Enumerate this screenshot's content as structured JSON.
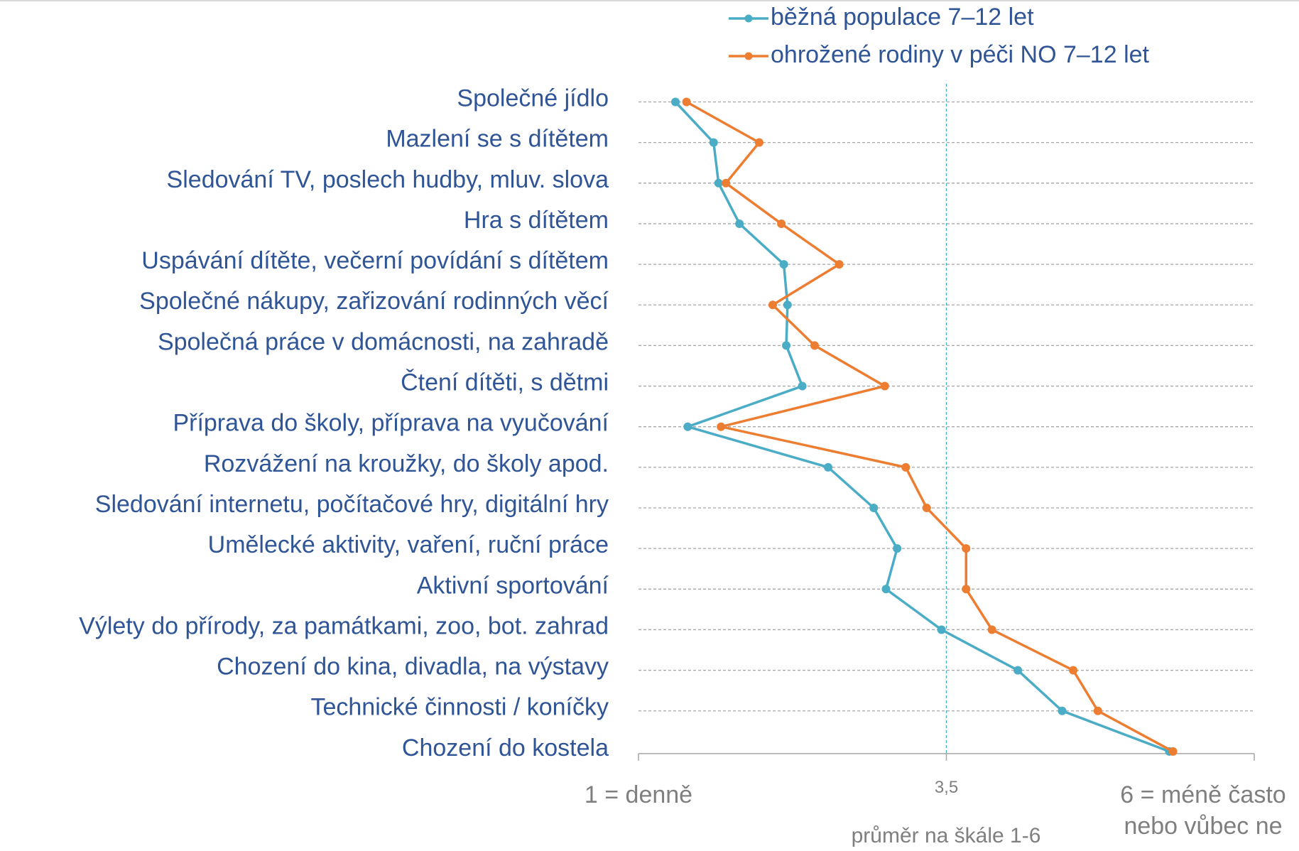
{
  "chart_data": {
    "type": "line",
    "categories": [
      "Společné jídlo",
      "Mazlení se s dítětem",
      "Sledování TV, poslech hudby, mluv. slova",
      "Hra s dítětem",
      "Uspávání dítěte, večerní povídání s dítětem",
      "Společné nákupy, zařizování rodinných věcí",
      "Společná práce v domácnosti, na zahradě",
      "Čtení dítěti, s dětmi",
      "Příprava do školy, příprava na vyučování",
      "Rozvážení na kroužky, do školy apod.",
      "Sledování internetu, počítačové hry, digitální hry",
      "Umělecké aktivity, vaření, ruční práce",
      "Aktivní sportování",
      "Výlety do přírody, za památkami, zoo, bot. zahrad",
      "Chození do kina, divadla, na výstavy",
      "Technické činnosti / koníčky",
      "Chození do kostela"
    ],
    "series": [
      {
        "name": "běžná populace 7–12 let",
        "color": "#4bacc6",
        "values": [
          1.3,
          1.61,
          1.65,
          1.82,
          2.18,
          2.21,
          2.2,
          2.33,
          1.4,
          2.54,
          2.91,
          3.1,
          3.01,
          3.46,
          4.08,
          4.44,
          5.31
        ]
      },
      {
        "name": "ohrožené rodiny v péči NO 7–12 let",
        "color": "#ed7d31",
        "values": [
          1.39,
          1.98,
          1.71,
          2.16,
          2.63,
          2.09,
          2.43,
          3.0,
          1.67,
          3.17,
          3.34,
          3.66,
          3.66,
          3.87,
          4.53,
          4.73,
          5.34
        ]
      }
    ],
    "xlabel": "průměr na škále 1-6",
    "xlim": [
      1,
      6
    ],
    "xticks": [
      {
        "value": 1,
        "label": "1 = denně"
      },
      {
        "value": 3.5,
        "label": "3,5"
      },
      {
        "value": 6,
        "label": "6 = méně často nebo vůbec ne"
      }
    ],
    "reference_line": 3.5,
    "grid": true,
    "legend": "top"
  }
}
